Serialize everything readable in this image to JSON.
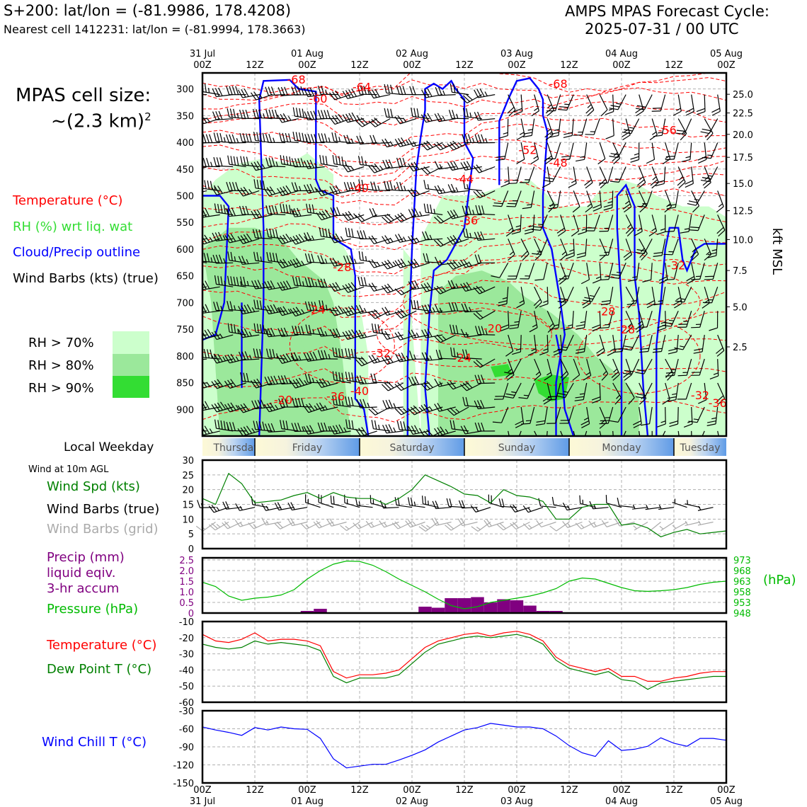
{
  "header": {
    "location_line": "S+200: lat/lon = (-81.9986, 178.4208)",
    "nearest_cell_line": "Nearest cell 1412231: lat/lon = (-81.9994, 178.3663)",
    "forecast_title": "AMPS MPAS Forecast Cycle:",
    "forecast_cycle": "2025-07-31 / 00 UTC"
  },
  "sidebar": {
    "cell_size_label": "MPAS cell size:",
    "cell_size_value": "~(2.3 km)",
    "cell_size_exp": "2",
    "legend_temperature": "Temperature (°C)",
    "legend_rh": "RH (%) wrt liq. wat",
    "legend_cloud": "Cloud/Precip outline",
    "legend_wind": "Wind Barbs (kts) (true)",
    "rh_levels": [
      "RH > 70%",
      "RH > 80%",
      "RH > 90%"
    ]
  },
  "colors": {
    "temperature": "#ff0000",
    "rh_label": "#33dd33",
    "rh70": "#ccffcc",
    "rh80": "#9be89b",
    "rh90": "#33dd33",
    "cloud": "#0000ff",
    "wind_speed": "#008000",
    "grid_barbs": "#aaaaaa",
    "precip": "#800080",
    "pressure": "#00bb00",
    "dewpoint": "#008000",
    "wind_chill": "#0000ff"
  },
  "time_axis": {
    "top_labels": [
      {
        "day": "31 Jul",
        "hour": "00Z"
      },
      {
        "day": "",
        "hour": "12Z"
      },
      {
        "day": "01 Aug",
        "hour": "00Z"
      },
      {
        "day": "",
        "hour": "12Z"
      },
      {
        "day": "02 Aug",
        "hour": "00Z"
      },
      {
        "day": "",
        "hour": "12Z"
      },
      {
        "day": "03 Aug",
        "hour": "00Z"
      },
      {
        "day": "",
        "hour": "12Z"
      },
      {
        "day": "04 Aug",
        "hour": "00Z"
      },
      {
        "day": "",
        "hour": "12Z"
      },
      {
        "day": "05 Aug",
        "hour": "00Z"
      }
    ]
  },
  "weekday_bar": {
    "label": "Local Weekday",
    "days": [
      "Thursday",
      "Friday",
      "Saturday",
      "Sunday",
      "Monday",
      "Tuesday"
    ]
  },
  "chart_data": [
    {
      "type": "heatmap",
      "name": "vertical-cross-section",
      "x_hours": [
        0,
        120
      ],
      "y_pressure_ticks": [
        300,
        350,
        400,
        450,
        500,
        550,
        600,
        650,
        700,
        750,
        800,
        850,
        900
      ],
      "y_pressure_range": [
        950,
        270
      ],
      "right_axis_label": "kft MSL",
      "right_ticks": [
        {
          "p": 310,
          "label": "25.0"
        },
        {
          "p": 345,
          "label": "22.5"
        },
        {
          "p": 385,
          "label": "20.0"
        },
        {
          "p": 428,
          "label": "17.5"
        },
        {
          "p": 477,
          "label": "15.0"
        },
        {
          "p": 528,
          "label": "12.5"
        },
        {
          "p": 582,
          "label": "10.0"
        },
        {
          "p": 640,
          "label": "7.5"
        },
        {
          "p": 708,
          "label": "5.0"
        },
        {
          "p": 783,
          "label": "2.5"
        }
      ],
      "temperature_labels": [
        {
          "h": 21.5,
          "p": 282,
          "label": "-68"
        },
        {
          "h": 36.5,
          "p": 296,
          "label": "-64"
        },
        {
          "h": 26.5,
          "p": 318,
          "label": "-60"
        },
        {
          "h": 81.5,
          "p": 290,
          "label": "-68"
        },
        {
          "h": 106.5,
          "p": 377,
          "label": "-56"
        },
        {
          "h": 74.5,
          "p": 414,
          "label": "-52"
        },
        {
          "h": 81.5,
          "p": 438,
          "label": "-48"
        },
        {
          "h": 60,
          "p": 468,
          "label": "-44"
        },
        {
          "h": 36,
          "p": 485,
          "label": "-40"
        },
        {
          "h": 61,
          "p": 546,
          "label": "-36"
        },
        {
          "h": 32,
          "p": 633,
          "label": "-28"
        },
        {
          "h": 108.5,
          "p": 630,
          "label": "-32"
        },
        {
          "h": 26,
          "p": 713,
          "label": "-24"
        },
        {
          "h": 92.5,
          "p": 716,
          "label": "-28"
        },
        {
          "h": 66.5,
          "p": 748,
          "label": "-20"
        },
        {
          "h": 97,
          "p": 750,
          "label": "-28"
        },
        {
          "h": 41,
          "p": 794,
          "label": "-32"
        },
        {
          "h": 59.5,
          "p": 803,
          "label": "-24"
        },
        {
          "h": 18.5,
          "p": 882,
          "label": "-20"
        },
        {
          "h": 30.5,
          "p": 875,
          "label": "-36"
        },
        {
          "h": 36,
          "p": 865,
          "label": "-40"
        },
        {
          "h": 114,
          "p": 873,
          "label": "-32"
        },
        {
          "h": 118,
          "p": 888,
          "label": "-36"
        }
      ]
    },
    {
      "type": "line",
      "name": "wind-speed-10m",
      "title": "Wind at 10m AGL",
      "legend": [
        "Wind Spd (kts)",
        "Wind Barbs (true)",
        "Wind Barbs (grid)"
      ],
      "x_hours": [
        0,
        3,
        6,
        9,
        12,
        15,
        18,
        21,
        24,
        27,
        30,
        33,
        36,
        39,
        42,
        45,
        48,
        51,
        54,
        57,
        60,
        63,
        66,
        69,
        72,
        75,
        78,
        81,
        84,
        87,
        90,
        93,
        96,
        99,
        102,
        105,
        108,
        111,
        114,
        117,
        120
      ],
      "values": [
        17,
        15,
        25.5,
        22,
        15.5,
        16,
        16.5,
        18,
        19,
        17,
        19,
        17.5,
        17,
        17,
        15,
        17,
        20,
        25,
        23,
        21,
        18.5,
        18,
        15.5,
        20,
        18,
        17.5,
        16,
        10,
        10,
        14,
        15,
        15,
        8,
        8.5,
        7,
        4,
        5.5,
        6.5,
        5,
        5.5,
        6
      ],
      "ylim": [
        0,
        30
      ],
      "yticks": [
        0,
        5,
        10,
        15,
        20,
        25,
        30
      ]
    },
    {
      "type": "bar",
      "name": "precip-and-pressure",
      "legend": [
        "Precip (mm)",
        "liquid eqiv.",
        "3-hr accum",
        "Pressure (hPa)"
      ],
      "right_label": "(hPa)",
      "precip_hours": [
        24,
        27,
        51,
        54,
        57,
        60,
        63,
        66,
        69,
        72,
        75,
        78,
        81
      ],
      "precip_values": [
        0.1,
        0.2,
        0.3,
        0.25,
        0.7,
        0.7,
        0.75,
        0.5,
        0.65,
        0.6,
        0.35,
        0.1,
        0.1
      ],
      "precip_ylim": [
        0,
        2.6
      ],
      "precip_yticks": [
        0,
        0.5,
        1.0,
        1.5,
        2.0,
        2.5
      ],
      "pressure_x_hours": [
        0,
        3,
        6,
        9,
        12,
        15,
        18,
        21,
        24,
        27,
        30,
        33,
        36,
        39,
        42,
        45,
        48,
        51,
        54,
        57,
        60,
        63,
        66,
        69,
        72,
        75,
        78,
        81,
        84,
        87,
        90,
        93,
        96,
        99,
        102,
        105,
        108,
        111,
        114,
        117,
        120
      ],
      "pressure_values": [
        962.5,
        960.5,
        956,
        954,
        955,
        955.5,
        956.5,
        959,
        964,
        968,
        971,
        972.5,
        972.3,
        970.5,
        967.5,
        964,
        961,
        958,
        954.5,
        951.5,
        950,
        951,
        953,
        954,
        955,
        956,
        957.5,
        959.5,
        963,
        964.5,
        964,
        962,
        960,
        958.5,
        958.2,
        958.5,
        959,
        960,
        961.5,
        962.5,
        963
      ],
      "pressure_ylim": [
        948,
        974
      ],
      "pressure_ticks": [
        948,
        953,
        958,
        963,
        968,
        973
      ]
    },
    {
      "type": "line",
      "name": "temperature-dewpoint",
      "legend": [
        "Temperature (°C)",
        "Dew Point T (°C)"
      ],
      "x_hours": [
        0,
        3,
        6,
        9,
        12,
        15,
        18,
        21,
        24,
        27,
        30,
        33,
        36,
        39,
        42,
        45,
        48,
        51,
        54,
        57,
        60,
        63,
        66,
        69,
        72,
        75,
        78,
        81,
        84,
        87,
        90,
        93,
        96,
        99,
        102,
        105,
        108,
        111,
        114,
        117,
        120
      ],
      "series": [
        {
          "name": "Temperature (°C)",
          "values": [
            -18,
            -22,
            -23,
            -21,
            -17,
            -22,
            -21,
            -21,
            -22,
            -25,
            -41,
            -45,
            -43,
            -43,
            -42,
            -40,
            -33,
            -26,
            -22,
            -20,
            -18,
            -17,
            -19,
            -17,
            -16,
            -18,
            -22,
            -32,
            -37,
            -39,
            -41,
            -39,
            -44,
            -44,
            -47,
            -47,
            -45,
            -44,
            -42,
            -41,
            -41
          ]
        },
        {
          "name": "Dew Point T (°C)",
          "values": [
            -24,
            -26,
            -27,
            -26,
            -22,
            -24,
            -23,
            -24,
            -25,
            -28,
            -44,
            -48,
            -45,
            -45,
            -45,
            -43,
            -36,
            -29,
            -24,
            -22,
            -20,
            -19,
            -20,
            -19,
            -18,
            -20,
            -24,
            -34,
            -39,
            -41,
            -43,
            -41,
            -46,
            -47,
            -52,
            -48,
            -47,
            -46,
            -45,
            -44,
            -44
          ]
        }
      ],
      "ylim": [
        -60,
        -10
      ],
      "yticks": [
        -60,
        -50,
        -40,
        -30,
        -20,
        -10
      ]
    },
    {
      "type": "line",
      "name": "wind-chill",
      "legend": [
        "Wind Chill T (°C)"
      ],
      "x_hours": [
        0,
        3,
        6,
        9,
        12,
        15,
        18,
        21,
        24,
        27,
        30,
        33,
        36,
        39,
        42,
        45,
        48,
        51,
        54,
        57,
        60,
        63,
        66,
        69,
        72,
        75,
        78,
        81,
        84,
        87,
        90,
        93,
        96,
        99,
        102,
        105,
        108,
        111,
        114,
        117,
        120
      ],
      "values": [
        -57,
        -62,
        -66,
        -71,
        -58,
        -62,
        -57,
        -60,
        -61,
        -76,
        -110,
        -125,
        -122,
        -119,
        -119,
        -112,
        -104,
        -95,
        -82,
        -72,
        -62,
        -58,
        -51,
        -54,
        -57,
        -57,
        -60,
        -72,
        -88,
        -100,
        -106,
        -80,
        -96,
        -94,
        -89,
        -75,
        -84,
        -89,
        -76,
        -76,
        -79
      ],
      "ylim": [
        -150,
        -30
      ],
      "yticks": [
        -150,
        -120,
        -90,
        -60,
        -30
      ],
      "bottom_labels": [
        {
          "hour": "00Z",
          "day": "31 Jul"
        },
        {
          "hour": "12Z",
          "day": ""
        },
        {
          "hour": "00Z",
          "day": "01 Aug"
        },
        {
          "hour": "12Z",
          "day": ""
        },
        {
          "hour": "00Z",
          "day": "02 Aug"
        },
        {
          "hour": "12Z",
          "day": ""
        },
        {
          "hour": "00Z",
          "day": "03 Aug"
        },
        {
          "hour": "12Z",
          "day": ""
        },
        {
          "hour": "00Z",
          "day": "04 Aug"
        },
        {
          "hour": "12Z",
          "day": ""
        },
        {
          "hour": "00Z",
          "day": "05 Aug"
        }
      ]
    }
  ]
}
